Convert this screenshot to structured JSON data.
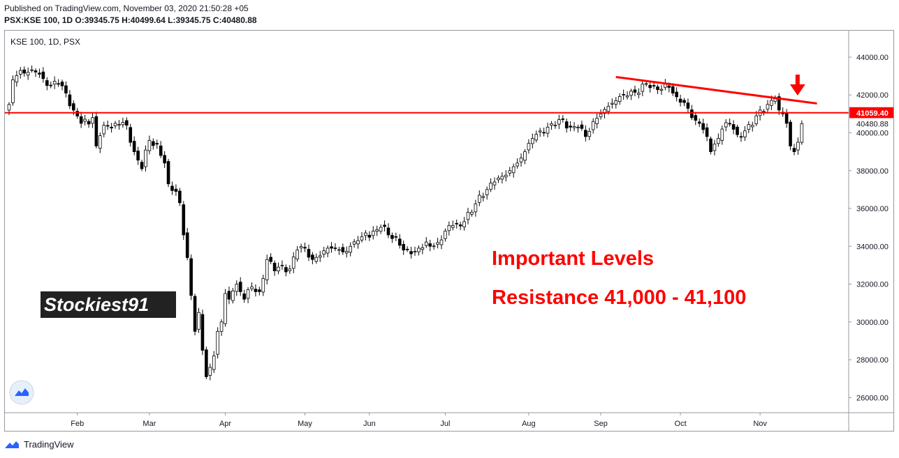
{
  "header": {
    "published": "Published on TradingView.com, November 03, 2020 21:50:28 +05",
    "ohlc_line": "PSX:KSE 100, 1D O:39345.75 H:40499.64 L:39345.75 C:40480.88"
  },
  "footer": {
    "brand": "TradingView"
  },
  "colors": {
    "up": "#ffffff",
    "down": "#000000",
    "wick": "#000000",
    "annotation": "#ff0000",
    "grid": "#e1e3eb",
    "axis_text": "#131722",
    "logo_bg": "#e6f0fb",
    "logo_fg": "#2962ff"
  },
  "chart_data": {
    "type": "candlestick",
    "symbol_label": "KSE 100, 1D, PSX",
    "watermark_text": "Stockiest91",
    "annotations": [
      "Important Levels",
      "Resistance 41,000 - 41,100"
    ],
    "resistance_level": 41059.4,
    "last_price": 40480.88,
    "ylim": [
      25200,
      45400
    ],
    "y_ticks": [
      26000,
      28000,
      30000,
      32000,
      34000,
      36000,
      38000,
      40000,
      42000,
      44000
    ],
    "y_tick_labels": [
      "26000.00",
      "28000.00",
      "30000.00",
      "32000.00",
      "34000.00",
      "36000.00",
      "38000.00",
      "40000.00",
      "42000.00",
      "44000.00"
    ],
    "price_tags": [
      {
        "label": "41059.40",
        "value": 41059.4,
        "style": "filled"
      },
      {
        "label": "40480.88",
        "value": 40480.88,
        "style": "plain"
      }
    ],
    "x_labels": [
      "Feb",
      "Mar",
      "Apr",
      "May",
      "Jun",
      "Jul",
      "Aug",
      "Sep",
      "Oct",
      "Nov"
    ],
    "x_label_index": [
      18,
      37,
      57,
      78,
      95,
      115,
      137,
      156,
      177,
      198
    ],
    "trendline": {
      "from_index": 160,
      "from_value": 42950,
      "to_index": 213,
      "to_value": 41550
    },
    "arrow_index": 202,
    "num_bars": 221,
    "closes": [
      {
        "i": 0,
        "c": 41500
      },
      {
        "i": 1,
        "c": 42800
      },
      {
        "i": 3,
        "c": 43300
      },
      {
        "i": 5,
        "c": 43200
      },
      {
        "i": 8,
        "c": 43100
      },
      {
        "i": 10,
        "c": 42500
      },
      {
        "i": 13,
        "c": 42600
      },
      {
        "i": 15,
        "c": 42100
      },
      {
        "i": 17,
        "c": 41200
      },
      {
        "i": 19,
        "c": 40500
      },
      {
        "i": 22,
        "c": 40800
      },
      {
        "i": 23,
        "c": 39300
      },
      {
        "i": 25,
        "c": 40400
      },
      {
        "i": 28,
        "c": 40500
      },
      {
        "i": 31,
        "c": 40400
      },
      {
        "i": 33,
        "c": 39000
      },
      {
        "i": 35,
        "c": 38100
      },
      {
        "i": 37,
        "c": 39600
      },
      {
        "i": 39,
        "c": 39400
      },
      {
        "i": 41,
        "c": 38400
      },
      {
        "i": 42,
        "c": 37300
      },
      {
        "i": 44,
        "c": 36900
      },
      {
        "i": 45,
        "c": 36300
      },
      {
        "i": 46,
        "c": 34600
      },
      {
        "i": 47,
        "c": 33400
      },
      {
        "i": 48,
        "c": 31400
      },
      {
        "i": 49,
        "c": 29500
      },
      {
        "i": 50,
        "c": 30500
      },
      {
        "i": 51,
        "c": 28500
      },
      {
        "i": 52,
        "c": 27100
      },
      {
        "i": 53,
        "c": 27600
      },
      {
        "i": 54,
        "c": 28200
      },
      {
        "i": 55,
        "c": 29500
      },
      {
        "i": 56,
        "c": 30000
      },
      {
        "i": 57,
        "c": 31500
      },
      {
        "i": 58,
        "c": 31200
      },
      {
        "i": 60,
        "c": 32000
      },
      {
        "i": 62,
        "c": 31200
      },
      {
        "i": 63,
        "c": 31700
      },
      {
        "i": 66,
        "c": 31600
      },
      {
        "i": 68,
        "c": 33300
      },
      {
        "i": 70,
        "c": 32700
      },
      {
        "i": 72,
        "c": 33000
      },
      {
        "i": 74,
        "c": 32800
      },
      {
        "i": 76,
        "c": 33800
      },
      {
        "i": 78,
        "c": 33900
      },
      {
        "i": 80,
        "c": 33300
      },
      {
        "i": 82,
        "c": 33500
      },
      {
        "i": 84,
        "c": 33900
      },
      {
        "i": 86,
        "c": 33900
      },
      {
        "i": 88,
        "c": 33700
      },
      {
        "i": 90,
        "c": 34000
      },
      {
        "i": 93,
        "c": 34500
      },
      {
        "i": 96,
        "c": 34800
      },
      {
        "i": 98,
        "c": 35000
      },
      {
        "i": 100,
        "c": 34600
      },
      {
        "i": 102,
        "c": 34500
      },
      {
        "i": 104,
        "c": 33800
      },
      {
        "i": 106,
        "c": 33600
      },
      {
        "i": 108,
        "c": 33900
      },
      {
        "i": 111,
        "c": 34000
      },
      {
        "i": 113,
        "c": 34200
      },
      {
        "i": 115,
        "c": 34800
      },
      {
        "i": 117,
        "c": 35100
      },
      {
        "i": 120,
        "c": 35300
      },
      {
        "i": 122,
        "c": 35800
      },
      {
        "i": 124,
        "c": 36700
      },
      {
        "i": 126,
        "c": 37000
      },
      {
        "i": 128,
        "c": 37400
      },
      {
        "i": 130,
        "c": 37700
      },
      {
        "i": 132,
        "c": 38000
      },
      {
        "i": 134,
        "c": 38400
      },
      {
        "i": 136,
        "c": 39000
      },
      {
        "i": 138,
        "c": 39700
      },
      {
        "i": 140,
        "c": 40100
      },
      {
        "i": 142,
        "c": 40300
      },
      {
        "i": 144,
        "c": 40400
      },
      {
        "i": 146,
        "c": 40700
      },
      {
        "i": 148,
        "c": 40300
      },
      {
        "i": 150,
        "c": 40300
      },
      {
        "i": 152,
        "c": 39800
      },
      {
        "i": 154,
        "c": 40600
      },
      {
        "i": 156,
        "c": 41000
      },
      {
        "i": 158,
        "c": 41400
      },
      {
        "i": 160,
        "c": 41700
      },
      {
        "i": 162,
        "c": 42000
      },
      {
        "i": 164,
        "c": 42200
      },
      {
        "i": 166,
        "c": 42100
      },
      {
        "i": 168,
        "c": 42600
      },
      {
        "i": 170,
        "c": 42500
      },
      {
        "i": 172,
        "c": 42300
      },
      {
        "i": 174,
        "c": 42400
      },
      {
        "i": 176,
        "c": 41900
      },
      {
        "i": 178,
        "c": 41600
      },
      {
        "i": 180,
        "c": 40800
      },
      {
        "i": 182,
        "c": 40500
      },
      {
        "i": 184,
        "c": 39800
      },
      {
        "i": 185,
        "c": 39000
      },
      {
        "i": 186,
        "c": 39400
      },
      {
        "i": 188,
        "c": 40200
      },
      {
        "i": 190,
        "c": 40500
      },
      {
        "i": 192,
        "c": 39900
      },
      {
        "i": 194,
        "c": 40100
      },
      {
        "i": 196,
        "c": 40400
      },
      {
        "i": 198,
        "c": 41200
      },
      {
        "i": 200,
        "c": 41500
      },
      {
        "i": 202,
        "c": 41800
      },
      {
        "i": 203,
        "c": 41200
      },
      {
        "i": 204,
        "c": 41000
      },
      {
        "i": 205,
        "c": 40500
      },
      {
        "i": 206,
        "c": 39300
      },
      {
        "i": 207,
        "c": 39000
      },
      {
        "i": 208,
        "c": 39500
      },
      {
        "i": 209,
        "c": 40480.88
      }
    ]
  }
}
